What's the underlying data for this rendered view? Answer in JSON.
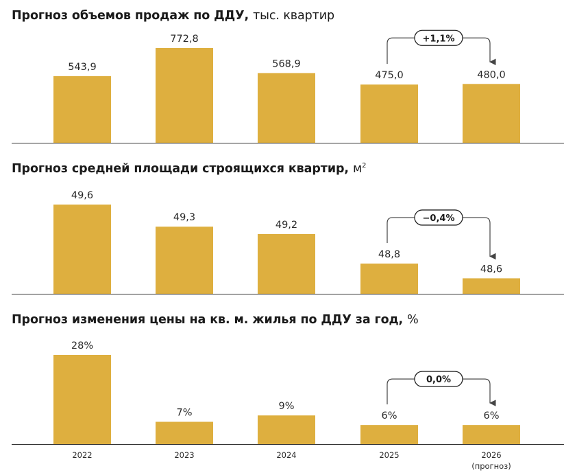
{
  "colors": {
    "bar": "#DEAF3F",
    "axis": "#333333",
    "text": "#1a1a1a",
    "arrow": "#444444"
  },
  "x_axis": {
    "tick_labels": [
      "2022",
      "2023",
      "2024",
      "2025",
      "2026"
    ],
    "forecast_note": "(прогноз)"
  },
  "chart_data": [
    {
      "type": "bar",
      "title": "Прогноз объемов продаж по ДДУ,",
      "unit": "тыс. квартир",
      "categories": [
        "2022",
        "2023",
        "2024",
        "2025",
        "2026"
      ],
      "values": [
        543.9,
        772.8,
        568.9,
        475.0,
        480.0
      ],
      "value_labels": [
        "543,9",
        "772,8",
        "568,9",
        "475,0",
        "480,0"
      ],
      "ylim": [
        0,
        850
      ],
      "change_annotation": {
        "from": "2025",
        "to": "2026",
        "text": "+1,1%"
      }
    },
    {
      "type": "bar",
      "title": "Прогноз средней площади строящихся квартир,",
      "unit": "м",
      "unit_superscript": "2",
      "categories": [
        "2022",
        "2023",
        "2024",
        "2025",
        "2026"
      ],
      "values": [
        49.6,
        49.3,
        49.2,
        48.8,
        48.6
      ],
      "value_labels": [
        "49,6",
        "49,3",
        "49,2",
        "48,8",
        "48,6"
      ],
      "ylim": [
        48.39,
        49.7
      ],
      "change_annotation": {
        "from": "2025",
        "to": "2026",
        "text": "−0,4%"
      }
    },
    {
      "type": "bar",
      "title": "Прогноз изменения цены на кв. м. жилья по ДДУ за год,",
      "unit": "%",
      "categories": [
        "2022",
        "2023",
        "2024",
        "2025",
        "2026"
      ],
      "values": [
        28,
        7,
        9,
        6,
        6
      ],
      "value_labels": [
        "28%",
        "7%",
        "9%",
        "6%",
        "6%"
      ],
      "ylim": [
        0,
        31
      ],
      "change_annotation": {
        "from": "2025",
        "to": "2026",
        "text": "0,0%"
      }
    }
  ]
}
